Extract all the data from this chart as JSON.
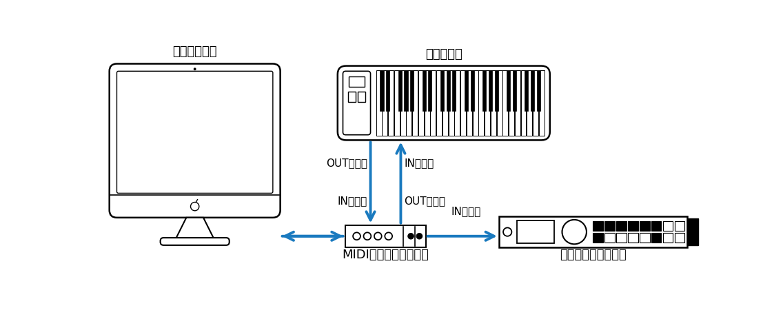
{
  "bg_color": "#ffffff",
  "arrow_color": "#1a7abf",
  "line_color": "#000000",
  "title_computer": "コンピュータ",
  "title_keyboard": "キーボード",
  "title_midi_if": "MIDIインターフェイス",
  "title_tone_gen": "トーンジェネレータ",
  "label_out_port_kb": "OUTポート",
  "label_in_port_kb": "INポート",
  "label_in_port_if": "INポート",
  "label_out_port_if": "OUTポート",
  "label_in_port_tg": "INポート",
  "font_size_title": 13,
  "font_size_label": 11
}
